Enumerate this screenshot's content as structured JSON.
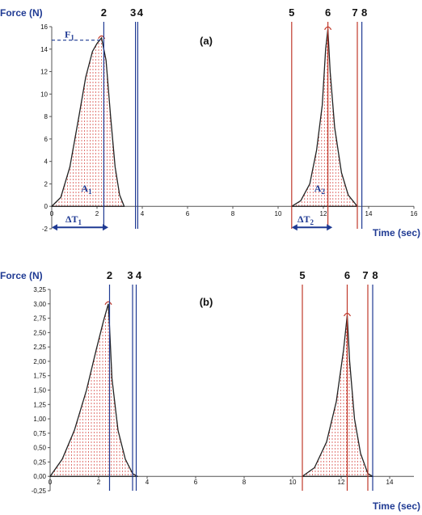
{
  "chart_data": [
    {
      "type": "area",
      "panel_label": "(a)",
      "ylabel": "Force (N)",
      "xlabel": "Time (sec)",
      "xlim": [
        0,
        16
      ],
      "ylim": [
        -2,
        16
      ],
      "x_ticks": [
        "0",
        "2",
        "4",
        "6",
        "8",
        "10",
        "12",
        "14",
        "16"
      ],
      "y_ticks": [
        "-2",
        "0",
        "2",
        "4",
        "6",
        "8",
        "10",
        "12",
        "14",
        "16"
      ],
      "markers": [
        {
          "label": "2",
          "x": 2.3,
          "color": "#1f3a93"
        },
        {
          "label": "3",
          "x": 3.7,
          "color": "#1f3a93"
        },
        {
          "label": "4",
          "x": 3.8,
          "color": "#1f3a93"
        },
        {
          "label": "5",
          "x": 10.6,
          "color": "#c0392b"
        },
        {
          "label": "6",
          "x": 12.2,
          "color": "#c0392b"
        },
        {
          "label": "7",
          "x": 13.5,
          "color": "#c0392b"
        },
        {
          "label": "8",
          "x": 13.7,
          "color": "#1f3a93"
        }
      ],
      "pulses": [
        {
          "points": [
            [
              0,
              0
            ],
            [
              0.4,
              0.8
            ],
            [
              0.8,
              3.5
            ],
            [
              1.2,
              8
            ],
            [
              1.5,
              11.5
            ],
            [
              1.8,
              13.8
            ],
            [
              2.0,
              14.5
            ],
            [
              2.2,
              15
            ],
            [
              2.4,
              13
            ],
            [
              2.6,
              8
            ],
            [
              2.8,
              3.5
            ],
            [
              3.0,
              1
            ],
            [
              3.2,
              0
            ]
          ]
        },
        {
          "points": [
            [
              10.6,
              0
            ],
            [
              11.0,
              0.5
            ],
            [
              11.4,
              2
            ],
            [
              11.7,
              5
            ],
            [
              11.95,
              9
            ],
            [
              12.1,
              14
            ],
            [
              12.2,
              15.8
            ],
            [
              12.3,
              12
            ],
            [
              12.5,
              7
            ],
            [
              12.8,
              3
            ],
            [
              13.1,
              1
            ],
            [
              13.5,
              0
            ]
          ]
        }
      ],
      "annotations": {
        "f1": "F",
        "f1_sub": "1",
        "f1_value": 14.8,
        "a1": "A",
        "a1_sub": "1",
        "a2": "A",
        "a2_sub": "2",
        "dt1": "ΔT",
        "dt1_sub": "1",
        "dt1_range": [
          0,
          2.5
        ],
        "dt2": "ΔT",
        "dt2_sub": "2",
        "dt2_range": [
          10.6,
          12.4
        ]
      }
    },
    {
      "type": "area",
      "panel_label": "(b)",
      "ylabel": "Force (N)",
      "xlabel": "Time (sec)",
      "xlim": [
        0,
        15
      ],
      "ylim": [
        -0.25,
        3.25
      ],
      "x_ticks": [
        "0",
        "2",
        "4",
        "6",
        "8",
        "10",
        "12",
        "14"
      ],
      "y_ticks": [
        "-0,25",
        "0,00",
        "0,25",
        "0,50",
        "0,75",
        "1,00",
        "1,25",
        "1,50",
        "1,75",
        "2,00",
        "2,25",
        "2,50",
        "2,75",
        "3,00",
        "3,25"
      ],
      "markers": [
        {
          "label": "2",
          "x": 2.45,
          "color": "#1f3a93"
        },
        {
          "label": "3",
          "x": 3.4,
          "color": "#1f3a93"
        },
        {
          "label": "4",
          "x": 3.55,
          "color": "#1f3a93"
        },
        {
          "label": "5",
          "x": 10.4,
          "color": "#c0392b"
        },
        {
          "label": "6",
          "x": 12.25,
          "color": "#c0392b"
        },
        {
          "label": "7",
          "x": 13.1,
          "color": "#c0392b"
        },
        {
          "label": "8",
          "x": 13.3,
          "color": "#1f3a93"
        }
      ],
      "pulses": [
        {
          "points": [
            [
              0,
              0
            ],
            [
              0.5,
              0.3
            ],
            [
              1.0,
              0.8
            ],
            [
              1.5,
              1.5
            ],
            [
              1.9,
              2.2
            ],
            [
              2.2,
              2.7
            ],
            [
              2.4,
              3.0
            ],
            [
              2.45,
              2.6
            ],
            [
              2.55,
              1.7
            ],
            [
              2.8,
              0.8
            ],
            [
              3.1,
              0.3
            ],
            [
              3.4,
              0.05
            ],
            [
              3.6,
              0
            ]
          ]
        },
        {
          "points": [
            [
              10.4,
              0
            ],
            [
              10.9,
              0.15
            ],
            [
              11.4,
              0.6
            ],
            [
              11.8,
              1.3
            ],
            [
              12.1,
              2.2
            ],
            [
              12.25,
              2.8
            ],
            [
              12.35,
              2.0
            ],
            [
              12.55,
              1.0
            ],
            [
              12.8,
              0.4
            ],
            [
              13.1,
              0.05
            ],
            [
              13.3,
              0
            ]
          ]
        }
      ]
    }
  ]
}
